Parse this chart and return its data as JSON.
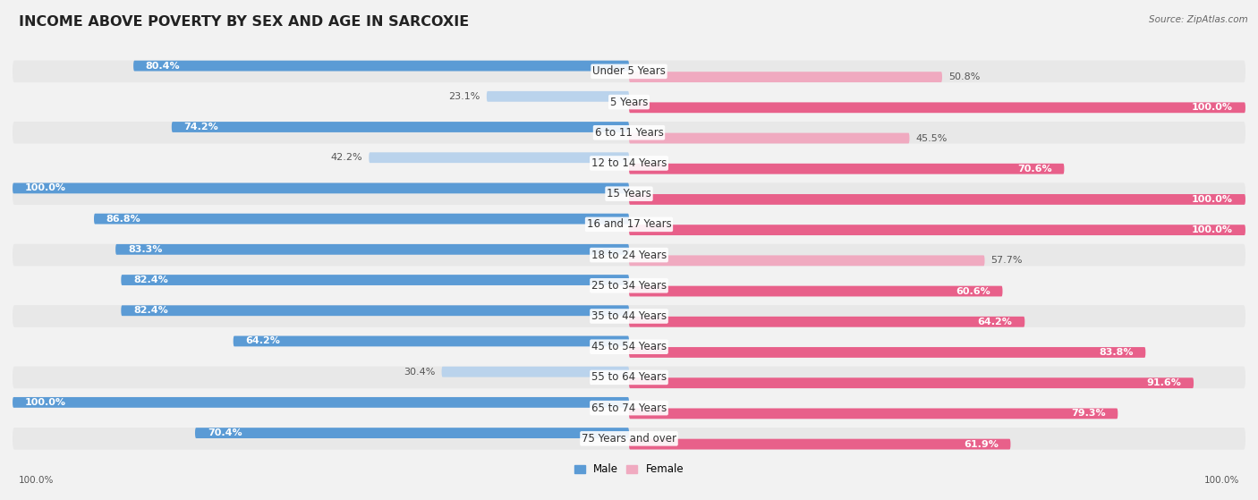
{
  "title": "INCOME ABOVE POVERTY BY SEX AND AGE IN SARCOXIE",
  "source": "Source: ZipAtlas.com",
  "categories": [
    "Under 5 Years",
    "5 Years",
    "6 to 11 Years",
    "12 to 14 Years",
    "15 Years",
    "16 and 17 Years",
    "18 to 24 Years",
    "25 to 34 Years",
    "35 to 44 Years",
    "45 to 54 Years",
    "55 to 64 Years",
    "65 to 74 Years",
    "75 Years and over"
  ],
  "male_values": [
    80.4,
    23.1,
    74.2,
    42.2,
    100.0,
    86.8,
    83.3,
    82.4,
    82.4,
    64.2,
    30.4,
    100.0,
    70.4
  ],
  "female_values": [
    50.8,
    100.0,
    45.5,
    70.6,
    100.0,
    100.0,
    57.7,
    60.6,
    64.2,
    83.8,
    91.6,
    79.3,
    61.9
  ],
  "male_dark": "#5b9bd5",
  "male_light": "#bad3ec",
  "female_dark": "#e8608a",
  "female_light": "#f0aac0",
  "bg_color": "#f2f2f2",
  "row_even_color": "#e8e8e8",
  "row_odd_color": "#f2f2f2",
  "title_fontsize": 11.5,
  "label_fontsize": 8.5,
  "value_fontsize": 8.0,
  "legend_male_color": "#5b9bd5",
  "legend_female_color": "#f0aac0"
}
